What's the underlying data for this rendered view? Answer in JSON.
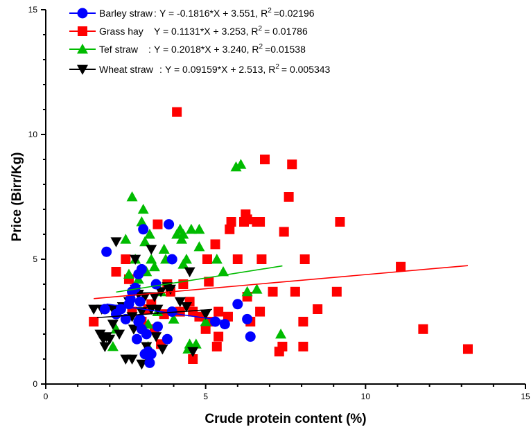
{
  "chart_data": {
    "type": "scatter",
    "title": "",
    "xlabel": "Crude protein content (%)",
    "ylabel": "Price (Birr/Kg)",
    "xlim": [
      0,
      15
    ],
    "ylim": [
      0,
      15
    ],
    "x_ticks": [
      "0",
      "5",
      "10",
      "15"
    ],
    "y_ticks": [
      "0",
      "5",
      "10",
      "15"
    ],
    "grid": false,
    "legend_position": "top-left",
    "series": [
      {
        "name": "Barley straw",
        "equation": "Y = -0.1816*X + 3.551",
        "r2_label": "R",
        "r2_sup": "2",
        "r2_value": "=0.02196",
        "marker": "circle",
        "color": "#0000ff",
        "fit_range": [
          1.9,
          5.5
        ],
        "fit": {
          "slope": -0.1816,
          "intercept": 3.551
        },
        "points": [
          [
            1.9,
            5.3
          ],
          [
            1.85,
            3.0
          ],
          [
            2.2,
            2.8
          ],
          [
            2.35,
            3.0
          ],
          [
            2.5,
            2.6
          ],
          [
            2.6,
            3.2
          ],
          [
            2.65,
            3.4
          ],
          [
            2.7,
            3.7
          ],
          [
            2.8,
            3.85
          ],
          [
            2.9,
            4.4
          ],
          [
            2.9,
            2.5
          ],
          [
            2.95,
            3.3
          ],
          [
            2.95,
            2.6
          ],
          [
            3.0,
            4.6
          ],
          [
            3.0,
            2.2
          ],
          [
            2.85,
            1.8
          ],
          [
            3.05,
            6.2
          ],
          [
            3.1,
            1.2
          ],
          [
            3.15,
            2.0
          ],
          [
            3.2,
            1.3
          ],
          [
            3.25,
            0.85
          ],
          [
            3.3,
            1.2
          ],
          [
            3.45,
            4.0
          ],
          [
            3.5,
            2.3
          ],
          [
            3.8,
            1.8
          ],
          [
            3.85,
            6.4
          ],
          [
            3.95,
            2.9
          ],
          [
            3.95,
            5.0
          ],
          [
            5.3,
            2.5
          ],
          [
            5.6,
            2.4
          ],
          [
            6.0,
            3.2
          ],
          [
            6.3,
            2.6
          ],
          [
            6.4,
            1.9
          ]
        ]
      },
      {
        "name": "Grass hay",
        "equation": "Y = 0.1131*X + 3.253",
        "r2_label": "R",
        "r2_sup": "2",
        "r2_value": "= 0.01786",
        "marker": "square",
        "color": "#ff0000",
        "fit_range": [
          1.5,
          13.2
        ],
        "fit": {
          "slope": 0.1131,
          "intercept": 3.253
        },
        "points": [
          [
            1.5,
            2.5
          ],
          [
            2.2,
            4.5
          ],
          [
            2.5,
            5.0
          ],
          [
            2.6,
            4.2
          ],
          [
            2.7,
            2.9
          ],
          [
            3.0,
            2.5
          ],
          [
            3.2,
            3.0
          ],
          [
            3.3,
            3.2
          ],
          [
            3.4,
            2.2
          ],
          [
            3.5,
            6.4
          ],
          [
            3.6,
            1.6
          ],
          [
            3.7,
            2.8
          ],
          [
            3.8,
            4.0
          ],
          [
            3.9,
            3.7
          ],
          [
            4.1,
            10.9
          ],
          [
            4.2,
            2.9
          ],
          [
            4.3,
            4.0
          ],
          [
            4.5,
            3.3
          ],
          [
            4.6,
            1.0
          ],
          [
            4.6,
            2.9
          ],
          [
            4.8,
            2.7
          ],
          [
            5.0,
            2.2
          ],
          [
            5.05,
            5.0
          ],
          [
            5.1,
            2.5
          ],
          [
            5.1,
            4.1
          ],
          [
            5.3,
            5.6
          ],
          [
            5.35,
            1.5
          ],
          [
            5.4,
            2.9
          ],
          [
            5.4,
            1.9
          ],
          [
            5.7,
            2.7
          ],
          [
            5.75,
            6.2
          ],
          [
            5.8,
            6.5
          ],
          [
            6.0,
            5.0
          ],
          [
            6.2,
            6.5
          ],
          [
            6.25,
            6.8
          ],
          [
            6.3,
            3.5
          ],
          [
            6.3,
            6.6
          ],
          [
            6.4,
            2.5
          ],
          [
            6.6,
            6.5
          ],
          [
            6.7,
            2.9
          ],
          [
            6.7,
            6.5
          ],
          [
            6.75,
            5.0
          ],
          [
            6.85,
            9.0
          ],
          [
            7.1,
            3.7
          ],
          [
            7.3,
            1.3
          ],
          [
            7.4,
            1.5
          ],
          [
            7.45,
            6.1
          ],
          [
            7.6,
            7.5
          ],
          [
            7.7,
            8.8
          ],
          [
            7.8,
            3.7
          ],
          [
            8.05,
            2.5
          ],
          [
            8.05,
            1.5
          ],
          [
            8.1,
            5.0
          ],
          [
            8.5,
            3.0
          ],
          [
            9.1,
            3.7
          ],
          [
            9.2,
            6.5
          ],
          [
            11.1,
            4.7
          ],
          [
            11.8,
            2.2
          ],
          [
            13.2,
            1.4
          ]
        ]
      },
      {
        "name": "Tef straw",
        "equation": "Y = 0.2018*X + 3.240",
        "r2_label": "R",
        "r2_sup": "2",
        "r2_value": "=0.01538",
        "marker": "triangle-up",
        "color": "#00bb00",
        "fit_range": [
          2.2,
          7.4
        ],
        "fit": {
          "slope": 0.2018,
          "intercept": 3.24
        },
        "points": [
          [
            2.1,
            1.5
          ],
          [
            2.2,
            2.2
          ],
          [
            2.5,
            5.8
          ],
          [
            2.6,
            4.4
          ],
          [
            2.7,
            7.5
          ],
          [
            2.8,
            5.0
          ],
          [
            2.9,
            4.2
          ],
          [
            3.0,
            6.5
          ],
          [
            3.05,
            7.0
          ],
          [
            3.1,
            5.7
          ],
          [
            3.15,
            4.5
          ],
          [
            3.2,
            2.4
          ],
          [
            3.2,
            1.5
          ],
          [
            3.25,
            6.0
          ],
          [
            3.3,
            5.0
          ],
          [
            3.4,
            4.7
          ],
          [
            3.5,
            2.9
          ],
          [
            3.6,
            3.7
          ],
          [
            3.7,
            5.4
          ],
          [
            3.75,
            5.0
          ],
          [
            4.0,
            2.6
          ],
          [
            4.1,
            6.0
          ],
          [
            4.2,
            6.2
          ],
          [
            4.25,
            5.8
          ],
          [
            4.3,
            4.8
          ],
          [
            4.3,
            6.0
          ],
          [
            4.4,
            5.0
          ],
          [
            4.45,
            1.4
          ],
          [
            4.5,
            1.6
          ],
          [
            4.55,
            6.2
          ],
          [
            4.7,
            1.6
          ],
          [
            4.8,
            6.2
          ],
          [
            4.8,
            5.5
          ],
          [
            5.0,
            2.5
          ],
          [
            5.35,
            5.0
          ],
          [
            5.55,
            4.5
          ],
          [
            5.95,
            8.7
          ],
          [
            6.1,
            8.8
          ],
          [
            6.3,
            3.7
          ],
          [
            6.6,
            3.8
          ],
          [
            7.35,
            2.0
          ]
        ]
      },
      {
        "name": "Wheat straw",
        "equation": "Y = 0.09159*X + 2.513",
        "r2_label": "R",
        "r2_sup": "2",
        "r2_value": "= 0.005343",
        "marker": "triangle-down",
        "color": "#000000",
        "fit_range": [
          1.6,
          5.2
        ],
        "fit": {
          "slope": 0.09159,
          "intercept": 2.513
        },
        "points": [
          [
            1.5,
            3.0
          ],
          [
            1.7,
            2.0
          ],
          [
            1.75,
            3.0
          ],
          [
            1.8,
            1.8
          ],
          [
            1.85,
            1.5
          ],
          [
            1.9,
            1.9
          ],
          [
            2.0,
            1.8
          ],
          [
            2.1,
            2.4
          ],
          [
            2.1,
            3.0
          ],
          [
            2.2,
            2.8
          ],
          [
            2.2,
            5.7
          ],
          [
            2.3,
            2.0
          ],
          [
            2.4,
            3.1
          ],
          [
            2.5,
            2.6
          ],
          [
            2.5,
            1.0
          ],
          [
            2.6,
            3.3
          ],
          [
            2.7,
            1.0
          ],
          [
            2.7,
            2.7
          ],
          [
            2.75,
            2.2
          ],
          [
            2.8,
            3.8
          ],
          [
            2.8,
            5.0
          ],
          [
            2.9,
            3.6
          ],
          [
            3.0,
            2.9
          ],
          [
            3.0,
            0.8
          ],
          [
            3.1,
            3.5
          ],
          [
            3.15,
            1.5
          ],
          [
            3.2,
            1.0
          ],
          [
            3.3,
            5.4
          ],
          [
            3.3,
            3.0
          ],
          [
            3.4,
            3.5
          ],
          [
            3.45,
            1.9
          ],
          [
            3.5,
            3.0
          ],
          [
            3.6,
            3.7
          ],
          [
            3.65,
            1.4
          ],
          [
            3.8,
            3.9
          ],
          [
            3.9,
            3.8
          ],
          [
            4.2,
            3.3
          ],
          [
            4.4,
            3.1
          ],
          [
            4.5,
            4.5
          ],
          [
            4.6,
            1.3
          ],
          [
            5.0,
            2.8
          ]
        ]
      }
    ]
  }
}
